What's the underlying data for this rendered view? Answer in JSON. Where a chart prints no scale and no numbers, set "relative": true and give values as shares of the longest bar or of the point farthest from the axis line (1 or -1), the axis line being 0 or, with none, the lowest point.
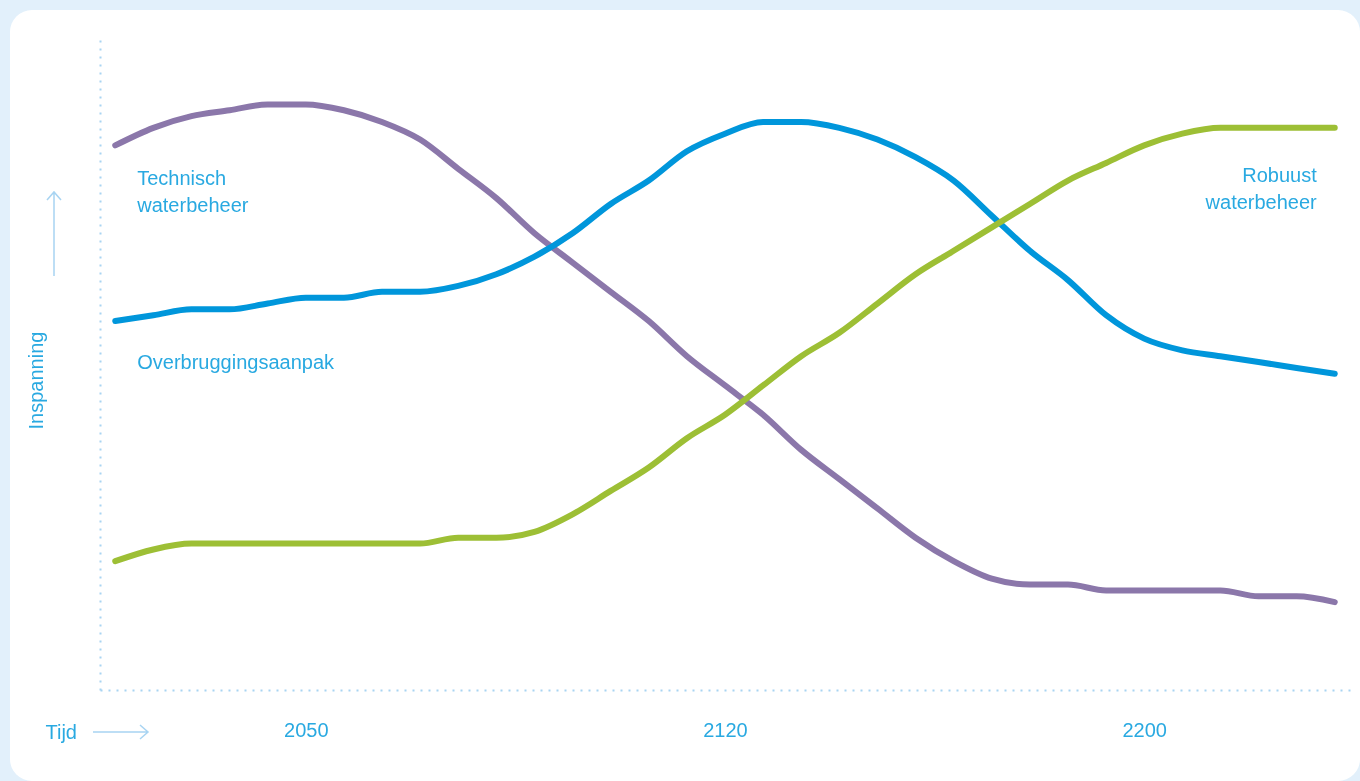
{
  "chart_data": {
    "type": "line",
    "relative": true,
    "xlabel": "Tijd",
    "ylabel": "Inspanning",
    "grid": false,
    "legend": false,
    "marker": "none",
    "line_style": "solid",
    "categories": [
      null,
      null,
      null,
      null,
      null,
      "2050",
      null,
      null,
      null,
      null,
      null,
      null,
      null,
      null,
      null,
      null,
      "2120",
      null,
      null,
      null,
      null,
      null,
      null,
      null,
      null,
      null,
      null,
      "2200",
      null,
      null,
      null,
      null,
      null
    ],
    "series": [
      {
        "name": "Technisch waterbeheer",
        "color": "#8b77aa",
        "values": [
          0.93,
          0.96,
          0.98,
          0.99,
          1,
          1,
          0.99,
          0.97,
          0.94,
          0.89,
          0.84,
          0.78,
          0.73,
          0.68,
          0.63,
          0.57,
          0.52,
          0.47,
          0.41,
          0.36,
          0.31,
          0.26,
          0.22,
          0.19,
          0.18,
          0.18,
          0.17,
          0.17,
          0.17,
          0.17,
          0.16,
          0.16,
          0.15
        ]
      },
      {
        "name": "Overbruggingsaanpak",
        "color": "#0096db",
        "values": [
          0.63,
          0.64,
          0.65,
          0.65,
          0.66,
          0.67,
          0.67,
          0.68,
          0.68,
          0.69,
          0.71,
          0.74,
          0.78,
          0.83,
          0.87,
          0.92,
          0.95,
          0.97,
          0.97,
          0.96,
          0.94,
          0.91,
          0.87,
          0.81,
          0.75,
          0.7,
          0.64,
          0.6,
          0.58,
          0.57,
          0.56,
          0.55,
          0.54
        ]
      },
      {
        "name": "Robuust waterbeheer",
        "color": "#9dbf35",
        "values": [
          0.22,
          0.24,
          0.25,
          0.25,
          0.25,
          0.25,
          0.25,
          0.25,
          0.25,
          0.26,
          0.26,
          0.27,
          0.3,
          0.34,
          0.38,
          0.43,
          0.47,
          0.52,
          0.57,
          0.61,
          0.66,
          0.71,
          0.75,
          0.79,
          0.83,
          0.87,
          0.9,
          0.93,
          0.95,
          0.96,
          0.96,
          0.96,
          0.96
        ]
      }
    ]
  }
}
